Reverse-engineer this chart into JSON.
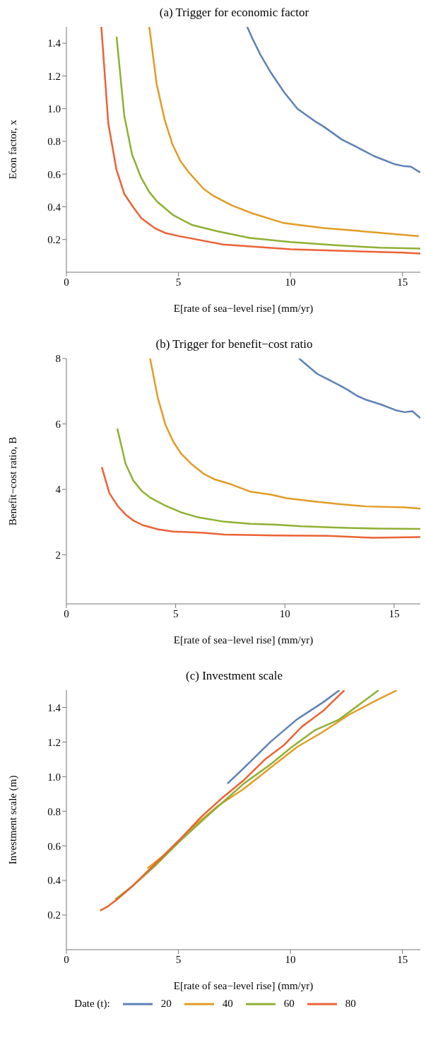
{
  "chart_data": [
    {
      "type": "line",
      "title": "(a) Trigger for economic factor",
      "xlabel": "E[rate of sea−level rise] (mm/yr)",
      "ylabel": "Econ factor, x",
      "xlim": [
        0,
        15.8
      ],
      "xticks": [
        0,
        5,
        10,
        15
      ],
      "ylim": [
        0,
        1.5
      ],
      "yticks": [
        0.2,
        0.4,
        0.6,
        0.8,
        {
          "value": 1.0,
          "label": "1.0"
        },
        1.2,
        1.4
      ],
      "grid": false,
      "line_style": "solid",
      "series": [
        {
          "color": "#5e81b5",
          "x": [
            8.07,
            8.3,
            8.66,
            9.13,
            9.72,
            10.31,
            11.13,
            11.49,
            12.31,
            12.9,
            13.73,
            14.67,
            15.02,
            15.38,
            15.79
          ],
          "values": [
            1.5,
            1.43,
            1.33,
            1.22,
            1.1,
            1.0,
            0.92,
            0.89,
            0.81,
            0.77,
            0.71,
            0.66,
            0.65,
            0.645,
            0.61
          ]
        },
        {
          "color": "#e19c24",
          "x": [
            3.7,
            4.03,
            4.39,
            4.74,
            5.09,
            5.47,
            6.12,
            6.53,
            7.36,
            8.3,
            9.72,
            11.49,
            13.25,
            15.73
          ],
          "values": [
            1.5,
            1.15,
            0.93,
            0.78,
            0.68,
            0.61,
            0.51,
            0.47,
            0.41,
            0.36,
            0.3,
            0.27,
            0.25,
            0.22
          ]
        },
        {
          "color": "#8fb032",
          "x": [
            2.24,
            2.58,
            2.93,
            3.33,
            3.7,
            4.06,
            4.76,
            5.59,
            6.77,
            8.18,
            10,
            12,
            14,
            15.8
          ],
          "values": [
            1.44,
            0.96,
            0.72,
            0.58,
            0.49,
            0.43,
            0.35,
            0.29,
            0.25,
            0.21,
            0.185,
            0.165,
            0.15,
            0.145
          ]
        },
        {
          "color": "#eb6235",
          "x": [
            1.56,
            1.87,
            2.23,
            2.58,
            2.97,
            3.35,
            3.94,
            4.41,
            5.06,
            7,
            10,
            15,
            15.8
          ],
          "values": [
            1.5,
            0.91,
            0.63,
            0.48,
            0.4,
            0.33,
            0.27,
            0.24,
            0.22,
            0.17,
            0.14,
            0.12,
            0.115
          ]
        }
      ]
    },
    {
      "type": "line",
      "title": "(b) Trigger for benefit−cost ratio",
      "xlabel": "E[rate of sea−level rise] (mm/yr)",
      "ylabel": "Benefit−cost ratio, B",
      "xlim": [
        0,
        16.2
      ],
      "xticks": [
        0,
        5,
        10,
        15
      ],
      "ylim": [
        0.5,
        8
      ],
      "yticks": [
        2,
        4,
        6,
        8
      ],
      "grid": false,
      "line_style": "solid",
      "series": [
        {
          "color": "#5e81b5",
          "x": [
            10.65,
            11.48,
            11.95,
            12.53,
            12.88,
            13.3,
            13.71,
            14.42,
            15.12,
            15.48,
            15.83,
            16.2
          ],
          "values": [
            8.0,
            7.53,
            7.37,
            7.17,
            7.04,
            6.86,
            6.74,
            6.59,
            6.41,
            6.36,
            6.39,
            6.18
          ]
        },
        {
          "color": "#e19c24",
          "x": [
            3.83,
            4.18,
            4.53,
            4.89,
            5.24,
            5.71,
            6.3,
            6.77,
            7.47,
            8.42,
            9.36,
            10.07,
            11.36,
            12.53,
            13.71,
            15.48,
            16.2
          ],
          "values": [
            8.0,
            6.81,
            5.98,
            5.46,
            5.1,
            4.78,
            4.47,
            4.31,
            4.17,
            3.93,
            3.84,
            3.73,
            3.63,
            3.55,
            3.48,
            3.45,
            3.41
          ]
        },
        {
          "color": "#8fb032",
          "x": [
            2.33,
            2.71,
            3.06,
            3.45,
            3.83,
            4.53,
            5.24,
            6.06,
            7.24,
            8.42,
            9.59,
            10.77,
            12.53,
            14.29,
            16.2
          ],
          "values": [
            5.86,
            4.78,
            4.27,
            3.95,
            3.75,
            3.5,
            3.3,
            3.14,
            3.01,
            2.95,
            2.92,
            2.87,
            2.83,
            2.8,
            2.79
          ]
        },
        {
          "color": "#eb6235",
          "x": [
            1.62,
            1.97,
            2.36,
            2.71,
            3.06,
            3.48,
            4.18,
            4.89,
            6.3,
            7.24,
            9.59,
            11.94,
            14.06,
            16.2
          ],
          "values": [
            4.68,
            3.88,
            3.48,
            3.23,
            3.05,
            2.91,
            2.78,
            2.71,
            2.67,
            2.62,
            2.59,
            2.58,
            2.52,
            2.54
          ]
        }
      ]
    },
    {
      "type": "line",
      "title": "(c) Investment scale",
      "xlabel": "E[rate of sea−level rise] (mm/yr)",
      "ylabel": "Investment scale (m)",
      "xlim": [
        0,
        15.8
      ],
      "xticks": [
        0,
        5,
        10,
        15
      ],
      "ylim": [
        0,
        1.5
      ],
      "yticks": [
        0.2,
        0.4,
        0.6,
        0.8,
        {
          "value": 1.0,
          "label": "1.0"
        },
        1.2,
        1.4
      ],
      "grid": false,
      "line_style": "solid",
      "legend": "bottom",
      "legend_title": "Date (t):",
      "series": [
        {
          "name": "20",
          "color": "#5e81b5",
          "x": [
            7.19,
            7.92,
            9.1,
            10.28,
            11.46,
            12.19
          ],
          "values": [
            0.96,
            1.05,
            1.2,
            1.33,
            1.43,
            1.5
          ]
        },
        {
          "name": "40",
          "color": "#e19c24",
          "x": [
            3.62,
            4.39,
            5.57,
            6.75,
            7.92,
            9.1,
            10.28,
            11.46,
            12.64,
            13.82,
            14.76
          ],
          "values": [
            0.47,
            0.55,
            0.7,
            0.83,
            0.93,
            1.05,
            1.17,
            1.26,
            1.36,
            1.44,
            1.5
          ]
        },
        {
          "name": "60",
          "color": "#8fb032",
          "x": [
            2.18,
            2.97,
            3.92,
            5.09,
            6.27,
            7.22,
            7.92,
            9.1,
            10.05,
            11.11,
            12.17,
            13.11,
            13.94
          ],
          "values": [
            0.29,
            0.37,
            0.48,
            0.63,
            0.77,
            0.88,
            0.96,
            1.07,
            1.17,
            1.27,
            1.33,
            1.42,
            1.5
          ]
        },
        {
          "name": "80",
          "color": "#eb6235",
          "x": [
            1.5,
            1.85,
            2.26,
            2.97,
            3.68,
            4.39,
            5.09,
            6.04,
            6.98,
            7.92,
            8.87,
            9.69,
            10.52,
            11.46,
            12.41
          ],
          "values": [
            0.225,
            0.25,
            0.29,
            0.37,
            0.46,
            0.55,
            0.64,
            0.77,
            0.88,
            0.98,
            1.1,
            1.18,
            1.29,
            1.38,
            1.5
          ]
        }
      ]
    }
  ]
}
